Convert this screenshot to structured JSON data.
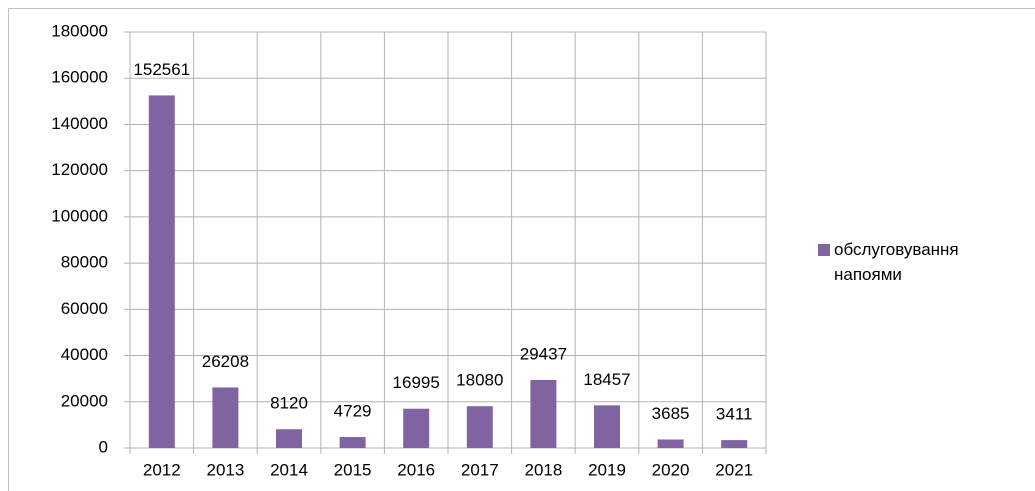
{
  "chart_data": {
    "type": "bar",
    "categories": [
      "2012",
      "2013",
      "2014",
      "2015",
      "2016",
      "2017",
      "2018",
      "2019",
      "2020",
      "2021"
    ],
    "series": [
      {
        "name": "обслуговування напоями",
        "color": "#8064a2",
        "values": [
          152561,
          26208,
          8120,
          4729,
          16995,
          18080,
          29437,
          18457,
          3685,
          3411
        ]
      }
    ],
    "ylim": [
      0,
      180000
    ],
    "yticks": [
      0,
      20000,
      40000,
      60000,
      80000,
      100000,
      120000,
      140000,
      160000,
      180000
    ],
    "grid": true,
    "legend": "right"
  }
}
